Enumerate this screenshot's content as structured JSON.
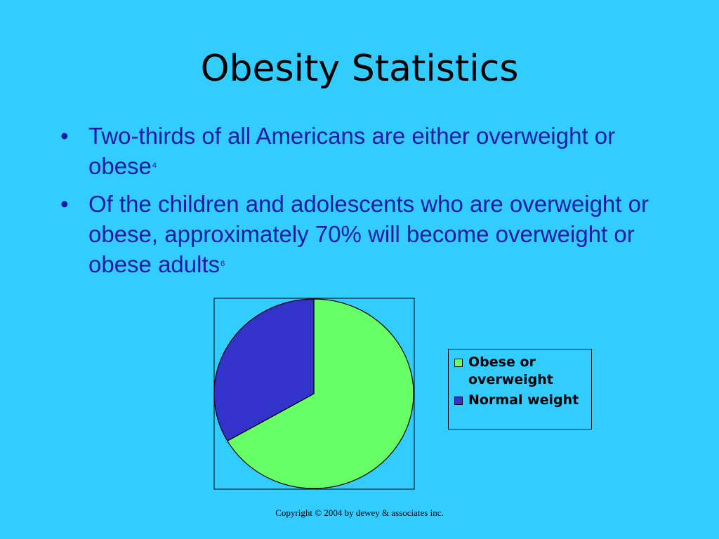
{
  "slide": {
    "title": "Obesity Statistics",
    "bullets": [
      {
        "text": "Two-thirds of all Americans are either overweight or obese",
        "ref": "4"
      },
      {
        "text": "Of the children and adolescents who are overweight or obese, approximately 70% will become overweight or obese adults",
        "ref": "6"
      }
    ],
    "copyright": "Copyright © 2004 by dewey & associates inc."
  },
  "chart_data": {
    "type": "pie",
    "title": "",
    "categories": [
      "Obese or overweight",
      "Normal weight"
    ],
    "values": [
      66.7,
      33.3
    ],
    "colors": [
      "#66ff66",
      "#3333cc"
    ],
    "legend_position": "right"
  }
}
